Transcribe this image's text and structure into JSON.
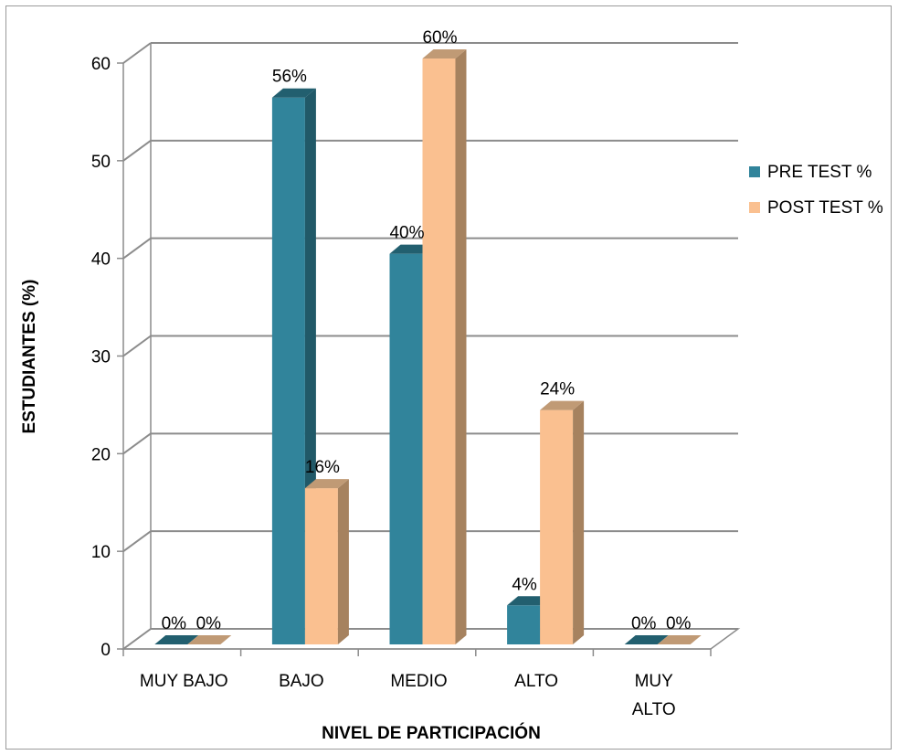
{
  "chart_data": {
    "type": "bar",
    "style": "3d-clustered-column",
    "categories": [
      "MUY BAJO",
      "BAJO",
      "MEDIO",
      "ALTO",
      "MUY ALTO"
    ],
    "series": [
      {
        "name": "PRE TEST %",
        "values": [
          0,
          56,
          40,
          4,
          0
        ],
        "labels": [
          "0%",
          "56%",
          "40%",
          "4%",
          "0%"
        ],
        "color": "#31849b",
        "side_color": "#215968",
        "top_color": "#225f6f"
      },
      {
        "name": "POST TEST %",
        "values": [
          0,
          16,
          60,
          24,
          0
        ],
        "labels": [
          "0%",
          "16%",
          "60%",
          "24%",
          "0%"
        ],
        "color": "#fac090",
        "side_color": "#a6825f",
        "top_color": "#c09a75"
      }
    ],
    "xlabel": "NIVEL DE PARTICIPACIÓN",
    "ylabel": "ESTUDIANTES (%)",
    "ylim": [
      0,
      60
    ],
    "yticks": [
      0,
      10,
      20,
      30,
      40,
      50,
      60
    ],
    "grid": true,
    "legend_position": "right"
  }
}
